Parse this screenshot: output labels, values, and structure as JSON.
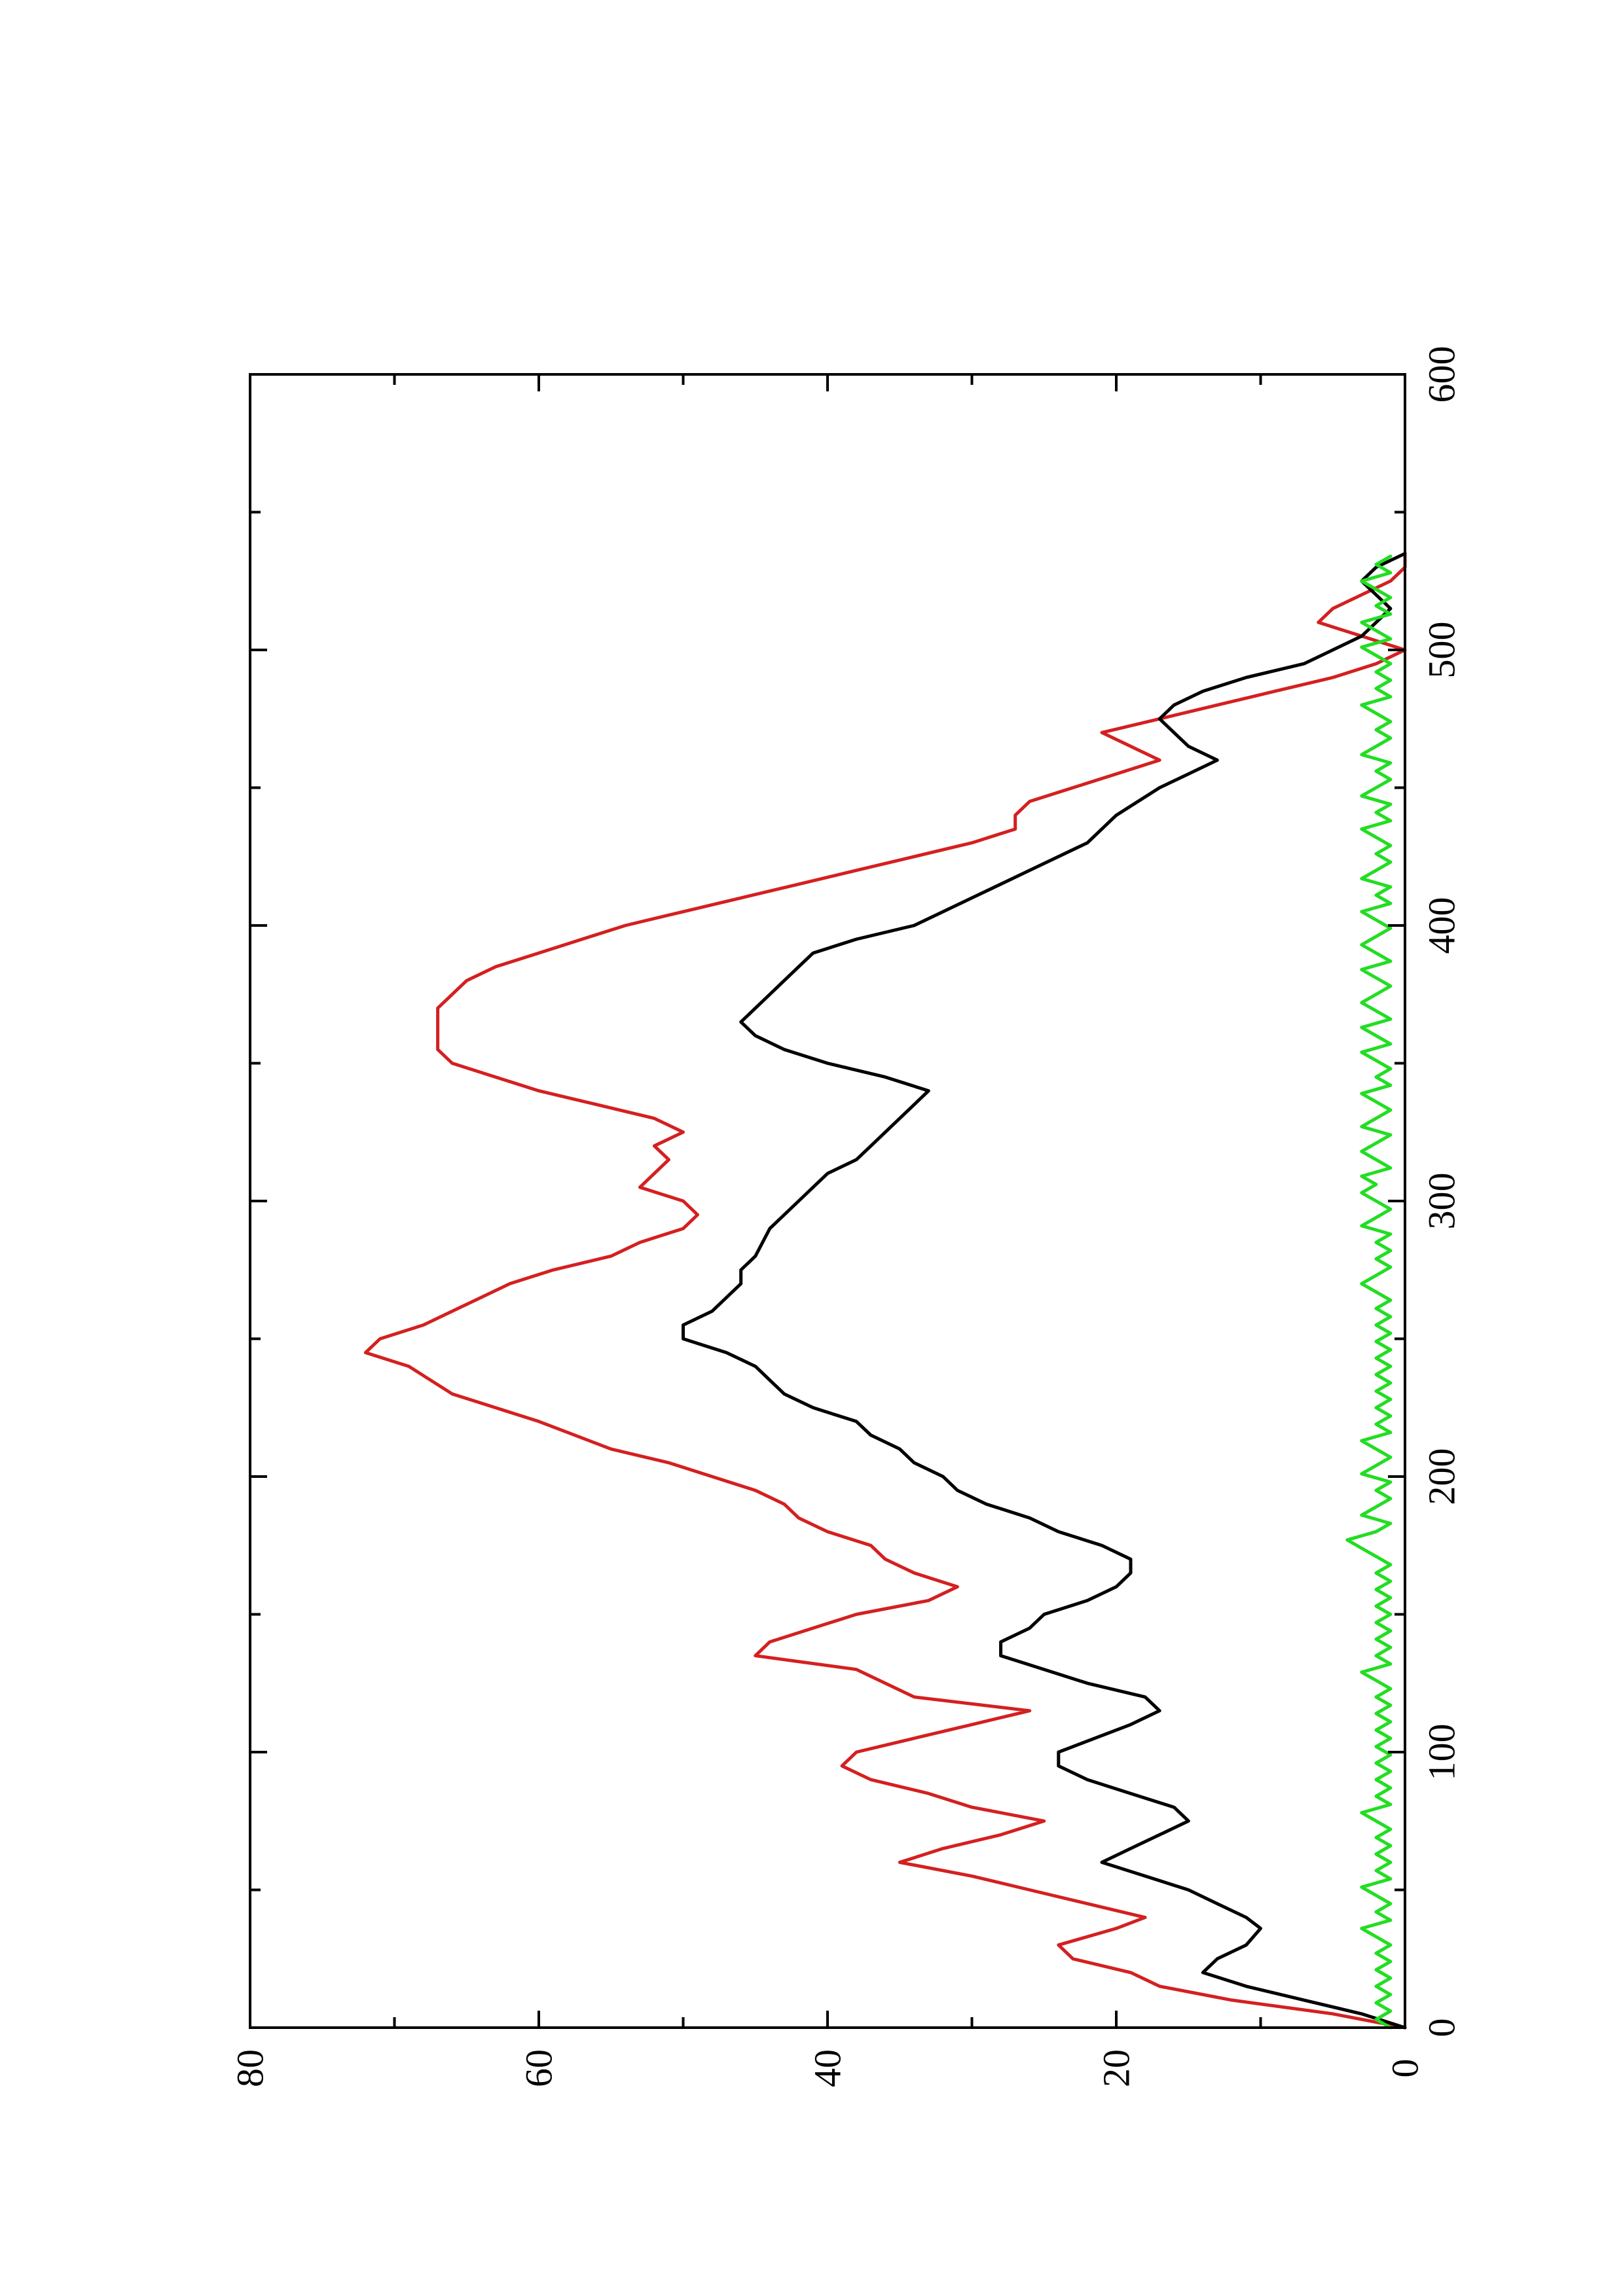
{
  "chart_data": {
    "type": "line",
    "orientation": "rotated-90-ccw",
    "title": "",
    "xlabel": "",
    "ylabel": "",
    "xlim": [
      0,
      600
    ],
    "ylim": [
      0,
      80
    ],
    "x_ticks": [
      0,
      100,
      200,
      300,
      400,
      500,
      600
    ],
    "x_tick_labels": [
      "0",
      "100",
      "200",
      "300",
      "400",
      "500",
      "600"
    ],
    "x_minor_ticks": [
      50,
      150,
      250,
      350,
      450,
      550
    ],
    "y_ticks": [
      0,
      20,
      40,
      60,
      80
    ],
    "y_tick_labels": [
      "0",
      "20",
      "40",
      "60",
      "80"
    ],
    "y_minor_ticks": [
      10,
      30,
      50,
      70
    ],
    "grid": false,
    "legend": "none",
    "series": [
      {
        "color": "#d42020",
        "x": [
          0,
          5,
          10,
          15,
          20,
          25,
          30,
          36,
          40,
          45,
          50,
          55,
          60,
          65,
          70,
          75,
          80,
          85,
          90,
          95,
          100,
          105,
          110,
          115,
          120,
          130,
          135,
          140,
          150,
          155,
          160,
          165,
          170,
          175,
          180,
          185,
          190,
          195,
          200,
          205,
          210,
          220,
          225,
          230,
          240,
          245,
          250,
          255,
          260,
          265,
          270,
          275,
          280,
          285,
          290,
          295,
          300,
          305,
          310,
          315,
          320,
          325,
          330,
          335,
          340,
          345,
          350,
          355,
          360,
          370,
          380,
          385,
          390,
          395,
          400,
          405,
          410,
          415,
          420,
          425,
          430,
          435,
          440,
          445,
          450,
          455,
          460,
          465,
          470,
          475,
          480,
          485,
          490,
          495,
          500,
          505,
          510,
          515,
          520,
          525,
          530,
          535
        ],
        "y": [
          0,
          5,
          12,
          17,
          19,
          23,
          24,
          20,
          18,
          22,
          26,
          30,
          35,
          32,
          28,
          25,
          30,
          33,
          37,
          39,
          38,
          34,
          30,
          26,
          34,
          38,
          45,
          44,
          38,
          33,
          31,
          34,
          36,
          37,
          40,
          42,
          43,
          45,
          48,
          51,
          55,
          60,
          63,
          66,
          69,
          72,
          71,
          68,
          66,
          64,
          62,
          59,
          55,
          53,
          50,
          49,
          50,
          53,
          52,
          51,
          52,
          50,
          52,
          56,
          60,
          63,
          66,
          67,
          67,
          67,
          65,
          63,
          60,
          57,
          54,
          50,
          46,
          42,
          38,
          34,
          30,
          27,
          27,
          26,
          23,
          20,
          17,
          19,
          21,
          17,
          13,
          9,
          5,
          2,
          0,
          3,
          6,
          5,
          3,
          1,
          0,
          0
        ]
      },
      {
        "color": "#000000",
        "x": [
          0,
          5,
          10,
          15,
          20,
          25,
          30,
          36,
          40,
          45,
          50,
          55,
          60,
          65,
          70,
          75,
          80,
          85,
          90,
          95,
          100,
          110,
          115,
          120,
          125,
          130,
          135,
          140,
          145,
          150,
          155,
          160,
          165,
          170,
          175,
          180,
          185,
          190,
          195,
          200,
          205,
          210,
          215,
          220,
          225,
          230,
          235,
          240,
          245,
          250,
          255,
          260,
          265,
          270,
          275,
          280,
          290,
          300,
          310,
          315,
          320,
          330,
          340,
          345,
          350,
          355,
          360,
          365,
          370,
          375,
          380,
          385,
          390,
          395,
          400,
          410,
          420,
          430,
          440,
          450,
          455,
          460,
          465,
          470,
          475,
          480,
          485,
          490,
          495,
          500,
          505,
          510,
          515,
          520,
          525,
          530,
          535
        ],
        "y": [
          0,
          3,
          7,
          11,
          14,
          13,
          11,
          10,
          11,
          13,
          15,
          18,
          21,
          19,
          17,
          15,
          16,
          19,
          22,
          24,
          24,
          19,
          17,
          18,
          22,
          25,
          28,
          28,
          26,
          25,
          22,
          20,
          19,
          19,
          21,
          24,
          26,
          29,
          31,
          32,
          34,
          35,
          37,
          38,
          41,
          43,
          44,
          45,
          47,
          50,
          50,
          48,
          47,
          46,
          46,
          45,
          44,
          42,
          40,
          38,
          37,
          35,
          33,
          36,
          40,
          43,
          45,
          46,
          45,
          44,
          43,
          42,
          41,
          38,
          34,
          30,
          26,
          22,
          20,
          17,
          15,
          13,
          15,
          16,
          17,
          16,
          14,
          11,
          7,
          5,
          3,
          2,
          1,
          2,
          3,
          2,
          0
        ]
      },
      {
        "color": "#22dd22",
        "x": [
          0,
          3,
          6,
          9,
          12,
          15,
          18,
          21,
          24,
          27,
          30,
          33,
          36,
          39,
          42,
          45,
          48,
          51,
          54,
          57,
          60,
          63,
          66,
          69,
          72,
          75,
          78,
          81,
          84,
          87,
          90,
          93,
          96,
          99,
          102,
          105,
          108,
          111,
          114,
          117,
          120,
          123,
          126,
          129,
          132,
          135,
          138,
          141,
          144,
          147,
          150,
          153,
          156,
          159,
          162,
          165,
          168,
          171,
          174,
          177,
          180,
          183,
          186,
          189,
          192,
          195,
          198,
          201,
          204,
          207,
          210,
          213,
          216,
          219,
          222,
          225,
          228,
          231,
          234,
          237,
          240,
          243,
          246,
          249,
          252,
          255,
          258,
          261,
          264,
          267,
          270,
          273,
          276,
          279,
          282,
          285,
          288,
          291,
          294,
          297,
          300,
          303,
          306,
          309,
          312,
          315,
          318,
          321,
          324,
          327,
          330,
          333,
          336,
          339,
          342,
          345,
          348,
          351,
          354,
          357,
          360,
          363,
          366,
          369,
          372,
          375,
          378,
          381,
          384,
          387,
          390,
          393,
          396,
          399,
          402,
          405,
          408,
          411,
          414,
          417,
          420,
          423,
          426,
          429,
          432,
          435,
          438,
          441,
          444,
          447,
          450,
          453,
          456,
          459,
          462,
          465,
          468,
          471,
          474,
          477,
          480,
          483,
          486,
          489,
          492,
          495,
          498,
          501,
          504,
          507,
          510,
          513,
          516,
          519,
          522,
          525,
          528,
          531,
          534
        ],
        "y": [
          1,
          2,
          1,
          2,
          1,
          2,
          1,
          2,
          1,
          2,
          1,
          2,
          3,
          1,
          2,
          1,
          2,
          3,
          1,
          2,
          1,
          2,
          1,
          2,
          1,
          2,
          3,
          1,
          2,
          1,
          2,
          1,
          2,
          1,
          2,
          1,
          2,
          1,
          2,
          1,
          2,
          1,
          2,
          3,
          1,
          2,
          1,
          2,
          1,
          2,
          1,
          2,
          1,
          2,
          1,
          2,
          1,
          2,
          3,
          4,
          2,
          1,
          3,
          2,
          1,
          2,
          1,
          3,
          2,
          1,
          2,
          3,
          1,
          2,
          1,
          2,
          1,
          2,
          1,
          2,
          1,
          2,
          1,
          2,
          1,
          2,
          1,
          2,
          1,
          2,
          3,
          2,
          1,
          2,
          1,
          2,
          1,
          3,
          2,
          1,
          2,
          3,
          2,
          3,
          1,
          2,
          3,
          2,
          1,
          3,
          2,
          1,
          2,
          3,
          1,
          2,
          1,
          2,
          3,
          1,
          2,
          3,
          1,
          2,
          3,
          2,
          1,
          2,
          3,
          1,
          2,
          3,
          2,
          1,
          2,
          3,
          1,
          2,
          1,
          3,
          2,
          1,
          2,
          1,
          2,
          3,
          1,
          2,
          1,
          3,
          2,
          1,
          2,
          1,
          3,
          2,
          1,
          2,
          1,
          2,
          3,
          1,
          2,
          1,
          2,
          1,
          2,
          3,
          1,
          2,
          3,
          1,
          2,
          1,
          2,
          3,
          1,
          2,
          1
        ]
      }
    ]
  }
}
